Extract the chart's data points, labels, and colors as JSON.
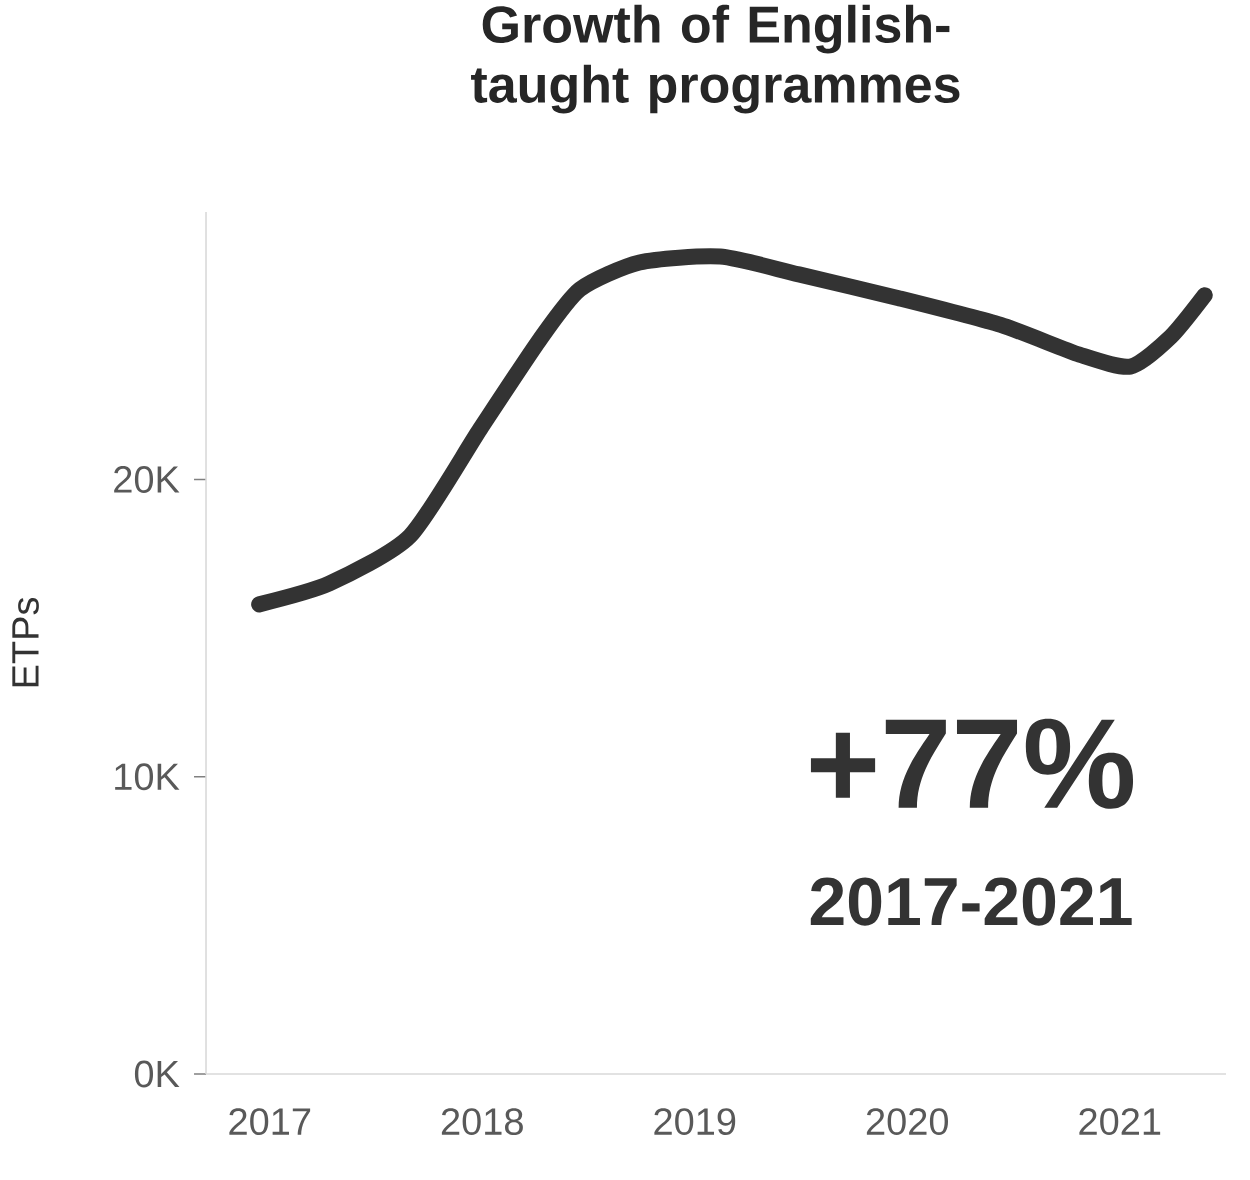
{
  "chart_data": {
    "type": "line",
    "title": "Growth of English-taught programmes",
    "ylabel": "ETPs",
    "x": [
      2016.95,
      2017.28,
      2017.66,
      2017.99,
      2018.27,
      2018.46,
      2018.74,
      2019.12,
      2019.49,
      2019.96,
      2020.44,
      2020.81,
      2021.05,
      2021.24,
      2021.4
    ],
    "series": [
      {
        "color": "#333333",
        "values": [
          15.8,
          16.5,
          18.1,
          21.7,
          24.7,
          26.4,
          27.3,
          27.5,
          26.9,
          26.1,
          25.2,
          24.2,
          23.8,
          24.8,
          26.2
        ]
      }
    ],
    "xticks": [
      2017,
      2018,
      2019,
      2020,
      2021
    ],
    "xlim": [
      2016.7,
      2021.5
    ],
    "ylim": [
      0,
      29
    ],
    "yticks": [
      {
        "value": 0,
        "label": "0K"
      },
      {
        "value": 10,
        "label": "10K"
      },
      {
        "value": 20,
        "label": "20K"
      }
    ],
    "annotations": [
      "+77%",
      "2017-2021"
    ]
  }
}
